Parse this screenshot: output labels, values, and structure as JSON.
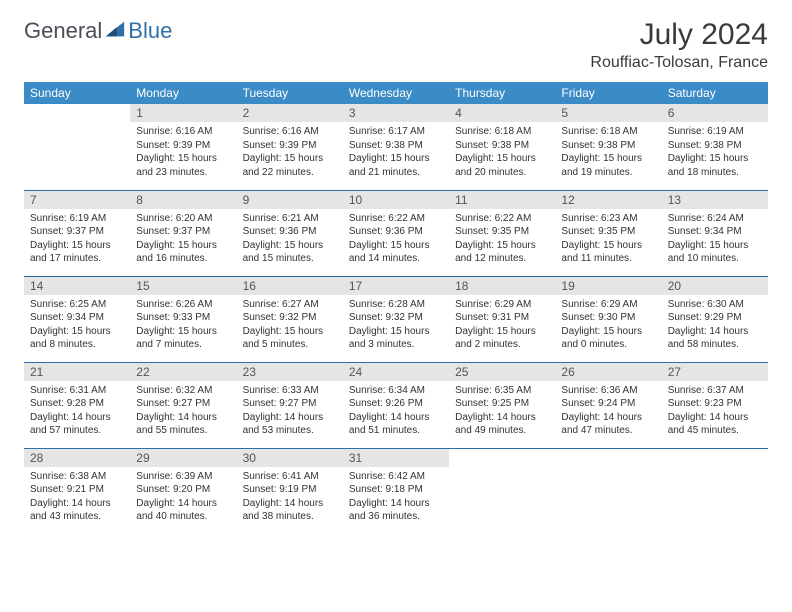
{
  "logo": {
    "text1": "General",
    "text2": "Blue"
  },
  "title": "July 2024",
  "location": "Rouffiac-Tolosan, France",
  "colors": {
    "header_bg": "#3b8bc6",
    "header_text": "#ffffff",
    "daynum_bg": "#e5e5e5",
    "row_border": "#2f6fa8",
    "text": "#333333",
    "logo_blue": "#2f6fa8",
    "logo_gray": "#4a4f55"
  },
  "fonts": {
    "title_pt": 30,
    "location_pt": 16,
    "dayhead_pt": 12,
    "body_pt": 10
  },
  "weekdays": [
    "Sunday",
    "Monday",
    "Tuesday",
    "Wednesday",
    "Thursday",
    "Friday",
    "Saturday"
  ],
  "weeks": [
    [
      {
        "n": "",
        "sunrise": "",
        "sunset": "",
        "daylight": ""
      },
      {
        "n": "1",
        "sunrise": "Sunrise: 6:16 AM",
        "sunset": "Sunset: 9:39 PM",
        "daylight": "Daylight: 15 hours and 23 minutes."
      },
      {
        "n": "2",
        "sunrise": "Sunrise: 6:16 AM",
        "sunset": "Sunset: 9:39 PM",
        "daylight": "Daylight: 15 hours and 22 minutes."
      },
      {
        "n": "3",
        "sunrise": "Sunrise: 6:17 AM",
        "sunset": "Sunset: 9:38 PM",
        "daylight": "Daylight: 15 hours and 21 minutes."
      },
      {
        "n": "4",
        "sunrise": "Sunrise: 6:18 AM",
        "sunset": "Sunset: 9:38 PM",
        "daylight": "Daylight: 15 hours and 20 minutes."
      },
      {
        "n": "5",
        "sunrise": "Sunrise: 6:18 AM",
        "sunset": "Sunset: 9:38 PM",
        "daylight": "Daylight: 15 hours and 19 minutes."
      },
      {
        "n": "6",
        "sunrise": "Sunrise: 6:19 AM",
        "sunset": "Sunset: 9:38 PM",
        "daylight": "Daylight: 15 hours and 18 minutes."
      }
    ],
    [
      {
        "n": "7",
        "sunrise": "Sunrise: 6:19 AM",
        "sunset": "Sunset: 9:37 PM",
        "daylight": "Daylight: 15 hours and 17 minutes."
      },
      {
        "n": "8",
        "sunrise": "Sunrise: 6:20 AM",
        "sunset": "Sunset: 9:37 PM",
        "daylight": "Daylight: 15 hours and 16 minutes."
      },
      {
        "n": "9",
        "sunrise": "Sunrise: 6:21 AM",
        "sunset": "Sunset: 9:36 PM",
        "daylight": "Daylight: 15 hours and 15 minutes."
      },
      {
        "n": "10",
        "sunrise": "Sunrise: 6:22 AM",
        "sunset": "Sunset: 9:36 PM",
        "daylight": "Daylight: 15 hours and 14 minutes."
      },
      {
        "n": "11",
        "sunrise": "Sunrise: 6:22 AM",
        "sunset": "Sunset: 9:35 PM",
        "daylight": "Daylight: 15 hours and 12 minutes."
      },
      {
        "n": "12",
        "sunrise": "Sunrise: 6:23 AM",
        "sunset": "Sunset: 9:35 PM",
        "daylight": "Daylight: 15 hours and 11 minutes."
      },
      {
        "n": "13",
        "sunrise": "Sunrise: 6:24 AM",
        "sunset": "Sunset: 9:34 PM",
        "daylight": "Daylight: 15 hours and 10 minutes."
      }
    ],
    [
      {
        "n": "14",
        "sunrise": "Sunrise: 6:25 AM",
        "sunset": "Sunset: 9:34 PM",
        "daylight": "Daylight: 15 hours and 8 minutes."
      },
      {
        "n": "15",
        "sunrise": "Sunrise: 6:26 AM",
        "sunset": "Sunset: 9:33 PM",
        "daylight": "Daylight: 15 hours and 7 minutes."
      },
      {
        "n": "16",
        "sunrise": "Sunrise: 6:27 AM",
        "sunset": "Sunset: 9:32 PM",
        "daylight": "Daylight: 15 hours and 5 minutes."
      },
      {
        "n": "17",
        "sunrise": "Sunrise: 6:28 AM",
        "sunset": "Sunset: 9:32 PM",
        "daylight": "Daylight: 15 hours and 3 minutes."
      },
      {
        "n": "18",
        "sunrise": "Sunrise: 6:29 AM",
        "sunset": "Sunset: 9:31 PM",
        "daylight": "Daylight: 15 hours and 2 minutes."
      },
      {
        "n": "19",
        "sunrise": "Sunrise: 6:29 AM",
        "sunset": "Sunset: 9:30 PM",
        "daylight": "Daylight: 15 hours and 0 minutes."
      },
      {
        "n": "20",
        "sunrise": "Sunrise: 6:30 AM",
        "sunset": "Sunset: 9:29 PM",
        "daylight": "Daylight: 14 hours and 58 minutes."
      }
    ],
    [
      {
        "n": "21",
        "sunrise": "Sunrise: 6:31 AM",
        "sunset": "Sunset: 9:28 PM",
        "daylight": "Daylight: 14 hours and 57 minutes."
      },
      {
        "n": "22",
        "sunrise": "Sunrise: 6:32 AM",
        "sunset": "Sunset: 9:27 PM",
        "daylight": "Daylight: 14 hours and 55 minutes."
      },
      {
        "n": "23",
        "sunrise": "Sunrise: 6:33 AM",
        "sunset": "Sunset: 9:27 PM",
        "daylight": "Daylight: 14 hours and 53 minutes."
      },
      {
        "n": "24",
        "sunrise": "Sunrise: 6:34 AM",
        "sunset": "Sunset: 9:26 PM",
        "daylight": "Daylight: 14 hours and 51 minutes."
      },
      {
        "n": "25",
        "sunrise": "Sunrise: 6:35 AM",
        "sunset": "Sunset: 9:25 PM",
        "daylight": "Daylight: 14 hours and 49 minutes."
      },
      {
        "n": "26",
        "sunrise": "Sunrise: 6:36 AM",
        "sunset": "Sunset: 9:24 PM",
        "daylight": "Daylight: 14 hours and 47 minutes."
      },
      {
        "n": "27",
        "sunrise": "Sunrise: 6:37 AM",
        "sunset": "Sunset: 9:23 PM",
        "daylight": "Daylight: 14 hours and 45 minutes."
      }
    ],
    [
      {
        "n": "28",
        "sunrise": "Sunrise: 6:38 AM",
        "sunset": "Sunset: 9:21 PM",
        "daylight": "Daylight: 14 hours and 43 minutes."
      },
      {
        "n": "29",
        "sunrise": "Sunrise: 6:39 AM",
        "sunset": "Sunset: 9:20 PM",
        "daylight": "Daylight: 14 hours and 40 minutes."
      },
      {
        "n": "30",
        "sunrise": "Sunrise: 6:41 AM",
        "sunset": "Sunset: 9:19 PM",
        "daylight": "Daylight: 14 hours and 38 minutes."
      },
      {
        "n": "31",
        "sunrise": "Sunrise: 6:42 AM",
        "sunset": "Sunset: 9:18 PM",
        "daylight": "Daylight: 14 hours and 36 minutes."
      },
      {
        "n": "",
        "sunrise": "",
        "sunset": "",
        "daylight": ""
      },
      {
        "n": "",
        "sunrise": "",
        "sunset": "",
        "daylight": ""
      },
      {
        "n": "",
        "sunrise": "",
        "sunset": "",
        "daylight": ""
      }
    ]
  ]
}
